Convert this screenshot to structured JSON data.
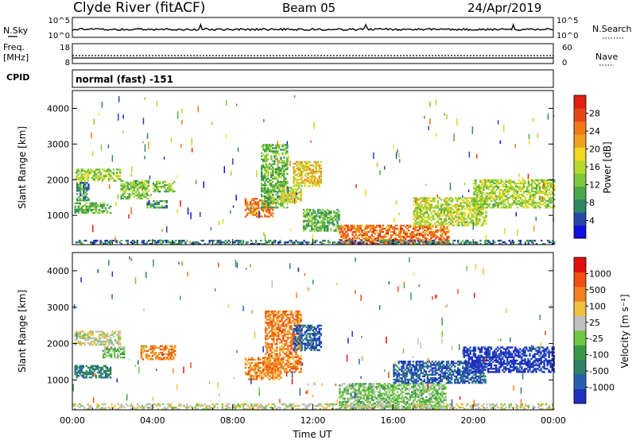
{
  "header": {
    "station": "Clyde River (fitACF)",
    "beam": "Beam 05",
    "date": "24/Apr/2019"
  },
  "noise_panel": {
    "left_label": "N.Sky",
    "right_label": "N.Search",
    "left_ticks": [
      "10^5",
      "10^0"
    ],
    "right_ticks": [
      "10^5",
      "10^0"
    ]
  },
  "freq_panel": {
    "left_label_1": "Freq.",
    "left_label_2": "[MHz]",
    "right_label": "Nave",
    "left_ticks": [
      "18",
      "8"
    ],
    "right_ticks": [
      "60",
      "0"
    ]
  },
  "cpid": {
    "label": "CPID",
    "value": "normal (fast) -151"
  },
  "chart_data": [
    {
      "type": "heatmap",
      "name": "power",
      "ylabel": "Slant Range [km]",
      "xlabel": "",
      "ylim": [
        180,
        4500
      ],
      "yticks": [
        "1000",
        "2000",
        "3000",
        "4000"
      ],
      "xticks": [
        "00:00",
        "04:00",
        "08:00",
        "12:00",
        "16:00",
        "20:00",
        "00:00"
      ],
      "colorbar": {
        "label": "Power [dB]",
        "ticks": [
          "4",
          "8",
          "12",
          "16",
          "20",
          "24",
          "28"
        ],
        "range": [
          0,
          32
        ],
        "colors": [
          "#1010e0",
          "#2848a8",
          "#2f8a64",
          "#4aa84a",
          "#7cc83a",
          "#b8d830",
          "#f0d820",
          "#f0a020",
          "#f07818",
          "#e84818",
          "#e02010"
        ]
      },
      "regions": [
        {
          "t0": 0.1,
          "t1": 2.4,
          "r0": 1950,
          "r1": 2300,
          "v": 15
        },
        {
          "t0": 0.1,
          "t1": 1.9,
          "r0": 1050,
          "r1": 1350,
          "v": 11
        },
        {
          "t0": 0.2,
          "t1": 0.8,
          "r0": 1400,
          "r1": 1900,
          "v": 8
        },
        {
          "t0": 2.4,
          "t1": 3.8,
          "r0": 1450,
          "r1": 1950,
          "v": 13
        },
        {
          "t0": 3.7,
          "t1": 4.7,
          "r0": 1200,
          "r1": 1400,
          "v": 9
        },
        {
          "t0": 4.0,
          "t1": 5.1,
          "r0": 1650,
          "r1": 1950,
          "v": 13
        },
        {
          "t0": 8.6,
          "t1": 10.0,
          "r0": 950,
          "r1": 1450,
          "v": 24
        },
        {
          "t0": 9.4,
          "t1": 10.7,
          "r0": 1200,
          "r1": 3000,
          "v": 11
        },
        {
          "t0": 10.4,
          "t1": 11.4,
          "r0": 1350,
          "r1": 1800,
          "v": 17
        },
        {
          "t0": 11.0,
          "t1": 12.4,
          "r0": 1800,
          "r1": 2500,
          "v": 19
        },
        {
          "t0": 11.5,
          "t1": 13.3,
          "r0": 550,
          "r1": 1150,
          "v": 11
        },
        {
          "t0": 13.3,
          "t1": 18.8,
          "r0": 200,
          "r1": 700,
          "v": 25
        },
        {
          "t0": 17.0,
          "t1": 20.6,
          "r0": 700,
          "r1": 1500,
          "v": 16
        },
        {
          "t0": 20.0,
          "t1": 24.0,
          "r0": 1200,
          "r1": 2000,
          "v": 15
        },
        {
          "t0": 0.0,
          "t1": 24.0,
          "r0": 180,
          "r1": 300,
          "v": 7
        }
      ]
    },
    {
      "type": "heatmap",
      "name": "velocity",
      "ylabel": "Slant Range [km]",
      "xlabel": "Time UT",
      "ylim": [
        180,
        4500
      ],
      "yticks": [
        "1000",
        "2000",
        "3000",
        "4000"
      ],
      "xticks": [
        "00:00",
        "04:00",
        "08:00",
        "12:00",
        "16:00",
        "20:00",
        "00:00"
      ],
      "colorbar": {
        "label": "Velocity [m s⁻¹]",
        "ticks": [
          "1000",
          "500",
          "100",
          "25",
          "-25",
          "-100",
          "-500",
          "-1000"
        ],
        "colors": [
          "#2030c0",
          "#2860b0",
          "#30806a",
          "#3a9a48",
          "#70c840",
          "#c0c0c0",
          "#f0c040",
          "#f08020",
          "#f05010",
          "#e01010"
        ]
      },
      "regions": [
        {
          "t0": 0.1,
          "t1": 2.4,
          "r0": 1950,
          "r1": 2350,
          "v": 5
        },
        {
          "t0": 0.1,
          "t1": 1.9,
          "r0": 1050,
          "r1": 1400,
          "v": 2
        },
        {
          "t0": 1.5,
          "t1": 2.6,
          "r0": 1600,
          "r1": 1900,
          "v": 4
        },
        {
          "t0": 3.4,
          "t1": 5.1,
          "r0": 1550,
          "r1": 1950,
          "v": 7
        },
        {
          "t0": 8.6,
          "t1": 10.4,
          "r0": 1000,
          "r1": 1600,
          "v": 7
        },
        {
          "t0": 9.6,
          "t1": 11.4,
          "r0": 1200,
          "r1": 2900,
          "v": 7
        },
        {
          "t0": 11.0,
          "t1": 12.4,
          "r0": 1800,
          "r1": 2500,
          "v": 1
        },
        {
          "t0": 13.3,
          "t1": 18.6,
          "r0": 200,
          "r1": 900,
          "v": 4
        },
        {
          "t0": 16.0,
          "t1": 20.6,
          "r0": 900,
          "r1": 1500,
          "v": 1
        },
        {
          "t0": 19.5,
          "t1": 24.0,
          "r0": 1200,
          "r1": 1900,
          "v": 0
        },
        {
          "t0": 0.0,
          "t1": 24.0,
          "r0": 180,
          "r1": 320,
          "v": 5
        }
      ]
    }
  ]
}
